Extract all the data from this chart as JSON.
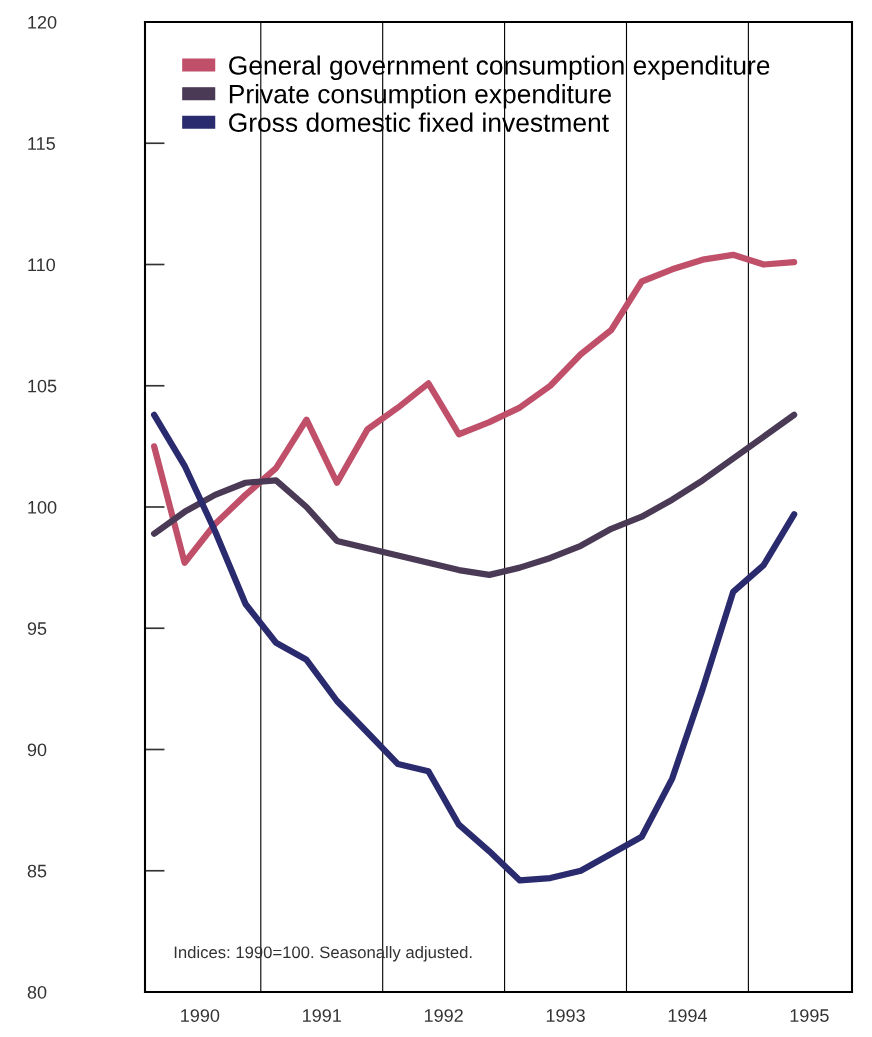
{
  "chart_data": {
    "type": "line",
    "x": [
      1990.125,
      1990.375,
      1990.625,
      1990.875,
      1991.125,
      1991.375,
      1991.625,
      1991.875,
      1992.125,
      1992.375,
      1992.625,
      1992.875,
      1993.125,
      1993.375,
      1993.625,
      1993.875,
      1994.125,
      1994.375,
      1994.625,
      1994.875,
      1995.125,
      1995.375
    ],
    "series": [
      {
        "name": "General government consumption expenditure",
        "color": "#c0506a",
        "values": [
          102.5,
          97.7,
          99.3,
          100.5,
          101.6,
          103.6,
          101.0,
          103.2,
          104.1,
          105.1,
          103.0,
          103.5,
          104.1,
          105.0,
          106.3,
          107.3,
          109.3,
          109.8,
          110.2,
          110.4,
          110.0,
          110.1
        ]
      },
      {
        "name": "Private consumption expenditure",
        "color": "#4a3a55",
        "values": [
          98.9,
          99.8,
          100.5,
          101.0,
          101.1,
          100.0,
          98.6,
          98.3,
          98.0,
          97.7,
          97.4,
          97.2,
          97.5,
          97.9,
          98.4,
          99.1,
          99.6,
          100.3,
          101.1,
          102.0,
          102.9,
          103.8
        ]
      },
      {
        "name": "Gross domestic fixed investment",
        "color": "#2a2a6e",
        "values": [
          103.8,
          101.7,
          99.0,
          96.0,
          94.4,
          93.7,
          92.0,
          90.7,
          89.4,
          89.1,
          86.9,
          85.8,
          84.6,
          84.7,
          85.0,
          85.7,
          86.4,
          88.8,
          92.5,
          96.5,
          97.6,
          99.7
        ]
      }
    ],
    "xlim": [
      1990.05,
      1995.85
    ],
    "xticks": [
      {
        "value": 1990.5,
        "label": "1990"
      },
      {
        "value": 1991.5,
        "label": "1991"
      },
      {
        "value": 1992.5,
        "label": "1992"
      },
      {
        "value": 1993.5,
        "label": "1993"
      },
      {
        "value": 1994.5,
        "label": "1994"
      },
      {
        "value": 1995.5,
        "label": "1995"
      }
    ],
    "ylim": [
      80,
      120
    ],
    "yticks": [
      80,
      85,
      90,
      95,
      100,
      105,
      110,
      115,
      120
    ],
    "ref_lines": [
      {
        "axis": "x",
        "value": 1991,
        "color": "#000000"
      },
      {
        "axis": "x",
        "value": 1992,
        "color": "#000000"
      },
      {
        "axis": "x",
        "value": 1993,
        "color": "#000000"
      },
      {
        "axis": "x",
        "value": 1994,
        "color": "#000000"
      },
      {
        "axis": "x",
        "value": 1995,
        "color": "#000000"
      }
    ],
    "annotations": [
      "Indices: 1990=100. Seasonally adjusted."
    ],
    "legend": "top left",
    "grid": false,
    "marker": "none",
    "line_style": "solid"
  }
}
